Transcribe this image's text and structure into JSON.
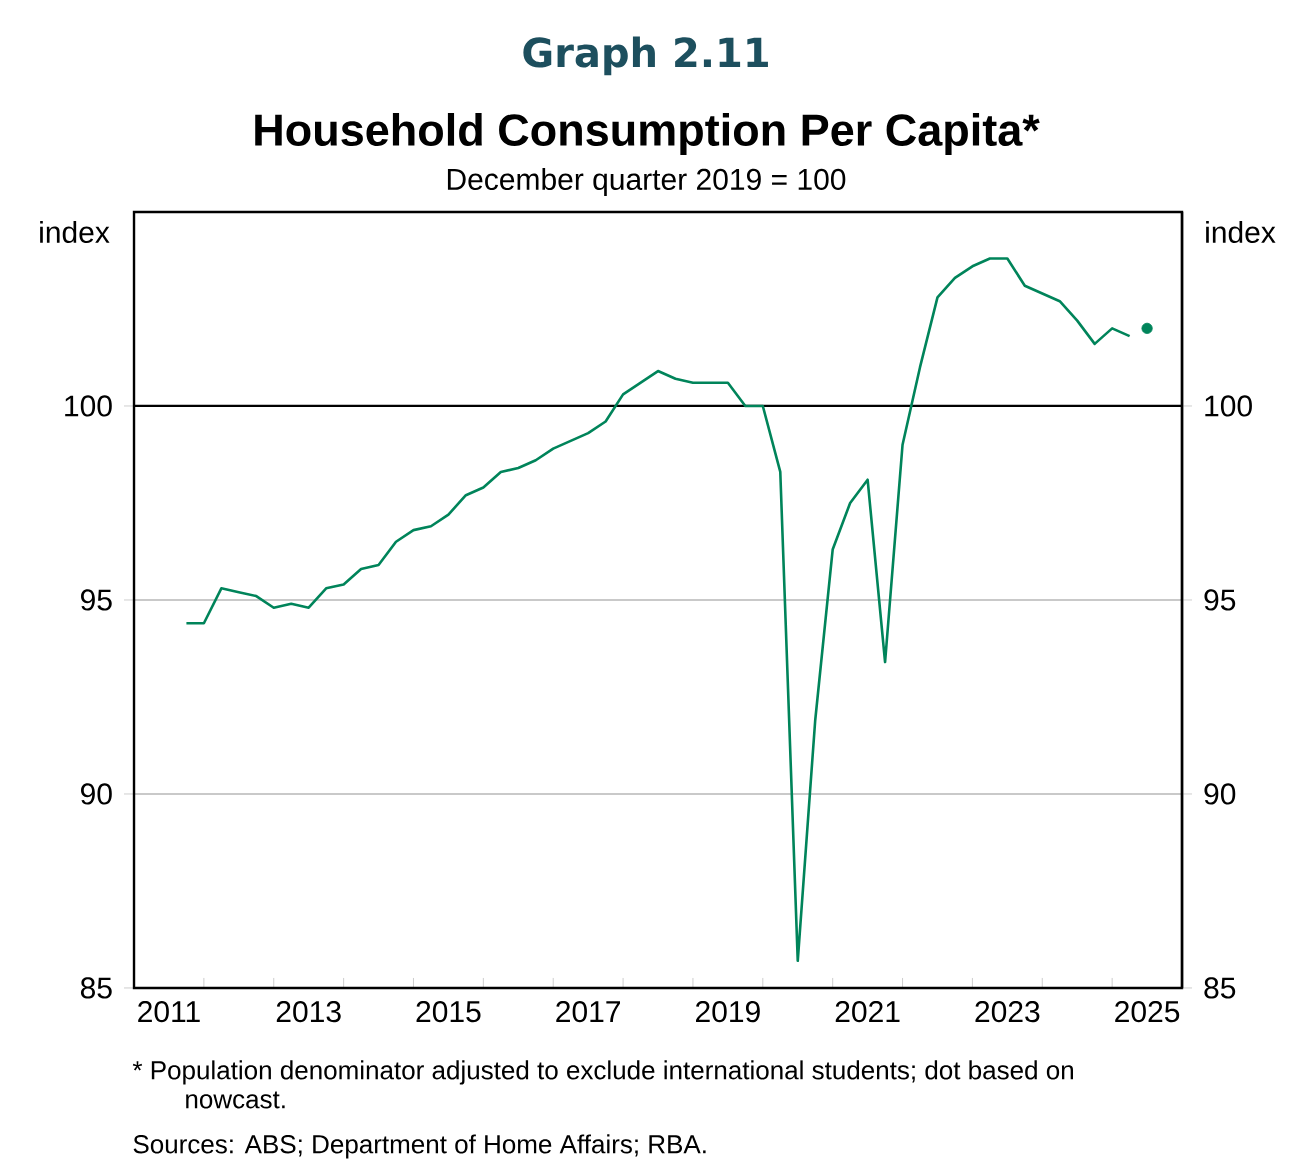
{
  "chart_data": {
    "type": "line",
    "title": "Household Consumption Per Capita*",
    "subtitle": "December quarter 2019 = 100",
    "ylabel": "index",
    "y2label": "index",
    "annotations": [
      "Graph 2.11",
      "* Population denominator adjusted to exclude international students; dot based on nowcast.",
      "Sources: ABS; Department of Home Affairs; RBA."
    ],
    "xlim": [
      2011,
      2026
    ],
    "xticks": [
      {
        "value": 2011,
        "label": null
      },
      {
        "value": 2011.5,
        "label": "2011"
      },
      {
        "value": 2012,
        "label": null
      },
      {
        "value": 2013,
        "label": null
      },
      {
        "value": 2013.5,
        "label": "2013"
      },
      {
        "value": 2014,
        "label": null
      },
      {
        "value": 2015,
        "label": null
      },
      {
        "value": 2015.5,
        "label": "2015"
      },
      {
        "value": 2016,
        "label": null
      },
      {
        "value": 2017,
        "label": null
      },
      {
        "value": 2017.5,
        "label": "2017"
      },
      {
        "value": 2018,
        "label": null
      },
      {
        "value": 2019,
        "label": null
      },
      {
        "value": 2019.5,
        "label": "2019"
      },
      {
        "value": 2020,
        "label": null
      },
      {
        "value": 2021,
        "label": null
      },
      {
        "value": 2021.5,
        "label": "2021"
      },
      {
        "value": 2022,
        "label": null
      },
      {
        "value": 2023,
        "label": null
      },
      {
        "value": 2023.5,
        "label": "2023"
      },
      {
        "value": 2024,
        "label": null
      },
      {
        "value": 2025,
        "label": null
      },
      {
        "value": 2025.5,
        "label": "2025"
      },
      {
        "value": 2026,
        "label": null
      }
    ],
    "ylim": [
      85,
      105
    ],
    "yticks": [
      85,
      90,
      95,
      100
    ],
    "y2lim": [
      85,
      105
    ],
    "y2ticks": [
      85,
      90,
      95,
      100
    ],
    "grid": "y",
    "ref_lines": [
      {
        "axis": "y",
        "value": 100,
        "color": "#000000"
      }
    ],
    "series": [
      {
        "color": "#00845a",
        "x": [
          2011.75,
          2012.0,
          2012.25,
          2012.5,
          2012.75,
          2013.0,
          2013.25,
          2013.5,
          2013.75,
          2014.0,
          2014.25,
          2014.5,
          2014.75,
          2015.0,
          2015.25,
          2015.5,
          2015.75,
          2016.0,
          2016.25,
          2016.5,
          2016.75,
          2017.0,
          2017.25,
          2017.5,
          2017.75,
          2018.0,
          2018.25,
          2018.5,
          2018.75,
          2019.0,
          2019.25,
          2019.5,
          2019.75,
          2020.0,
          2020.25,
          2020.5,
          2020.75,
          2021.0,
          2021.25,
          2021.5,
          2021.75,
          2022.0,
          2022.25,
          2022.5,
          2022.75,
          2023.0,
          2023.25,
          2023.5,
          2023.75,
          2024.0,
          2024.25,
          2024.5,
          2024.75,
          2025.0,
          2025.25
        ],
        "values": [
          94.4,
          94.4,
          95.3,
          95.2,
          95.1,
          94.8,
          94.9,
          94.8,
          95.3,
          95.4,
          95.8,
          95.9,
          96.5,
          96.8,
          96.9,
          97.2,
          97.7,
          97.9,
          98.3,
          98.4,
          98.6,
          98.9,
          99.1,
          99.3,
          99.6,
          100.3,
          100.6,
          100.9,
          100.7,
          100.6,
          100.6,
          100.6,
          100.0,
          100.0,
          98.3,
          85.7,
          91.9,
          96.3,
          97.5,
          98.1,
          93.4,
          99.0,
          101.0,
          102.8,
          103.3,
          103.6,
          103.8,
          103.8,
          103.1,
          102.9,
          102.7,
          102.2,
          101.6,
          102.0,
          101.8
        ]
      },
      {
        "type": "scatter",
        "marker": "circle",
        "color": "#00845a",
        "x": [
          2025.5
        ],
        "values": [
          102.0
        ]
      }
    ]
  }
}
